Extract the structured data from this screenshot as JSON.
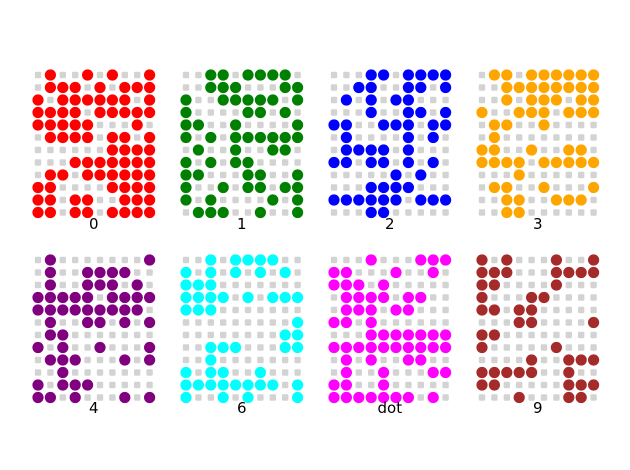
{
  "chart_data": {
    "type": "scatter",
    "background_dot_color": "#d3d3d3",
    "panels": [
      {
        "label": "0",
        "color": "#ff0000",
        "rows": [
          "0100101001",
          "0111010111",
          "1011111101",
          "1111011111",
          "1111100010",
          "0111101101",
          "0000001111",
          "0001111111",
          "0110111111",
          "1100001111",
          "1101100111",
          "1101101111"
        ]
      },
      {
        "label": "1",
        "color": "#008000",
        "rows": [
          "0011011110",
          "0011100011",
          "1001111101",
          "1000011010",
          "1100100001",
          "1010111111",
          "0100100110",
          "1010110000",
          "1100011001",
          "1001011011",
          "1010000101",
          "0111001001"
        ]
      },
      {
        "label": "2",
        "color": "#0000ff",
        "rows": [
          "0001101111",
          "0011001101",
          "0101011000",
          "0001001101",
          "1100111011",
          "0100001010",
          "0111101000",
          "1101101010",
          "0000010100",
          "0001111000",
          "1111110111",
          "0001100000"
        ]
      },
      {
        "label": "3",
        "color": "#ffa500",
        "rows": [
          "0110111111",
          "0011111111",
          "0010111011",
          "1001110111",
          "0110010000",
          "0100000000",
          "1100100110",
          "1111011111",
          "0001000000",
          "0110010001",
          "0011001110",
          "0011000000"
        ]
      },
      {
        "label": "4",
        "color": "#800080",
        "rows": [
          "0100000001",
          "0100111100",
          "0100111010",
          "1111101111",
          "1111111110",
          "0100110101",
          "0110000000",
          "1010010001",
          "0111000101",
          "0010000000",
          "1011100000",
          "1101000101"
        ]
      },
      {
        "label": "6",
        "color": "#00ffff",
        "rows": [
          "0010111100",
          "1010101010",
          "1110000000",
          "1111010111",
          "1110000000",
          "0000000001",
          "0000000011",
          "0011100011",
          "0010000000",
          "1011001000",
          "1111111101",
          "1001010001"
        ]
      },
      {
        "label": "dot",
        "color": "#ff00ff",
        "rows": [
          "0001000111",
          "1100010010",
          "1110100000",
          "0111101100",
          "0111011000",
          "1101000000",
          "0001111111",
          "1111111111",
          "0101001100",
          "0100100011",
          "1100100000",
          "1111111010"
        ]
      },
      {
        "label": "9",
        "color": "#a52a2a",
        "rows": [
          "1010001001",
          "1110001111",
          "1100001000",
          "1000110000",
          "1101100000",
          "0001100001",
          "1100000000",
          "1000001000",
          "0000100111",
          "1111100100",
          "1100000111",
          "0001000110"
        ]
      }
    ]
  }
}
